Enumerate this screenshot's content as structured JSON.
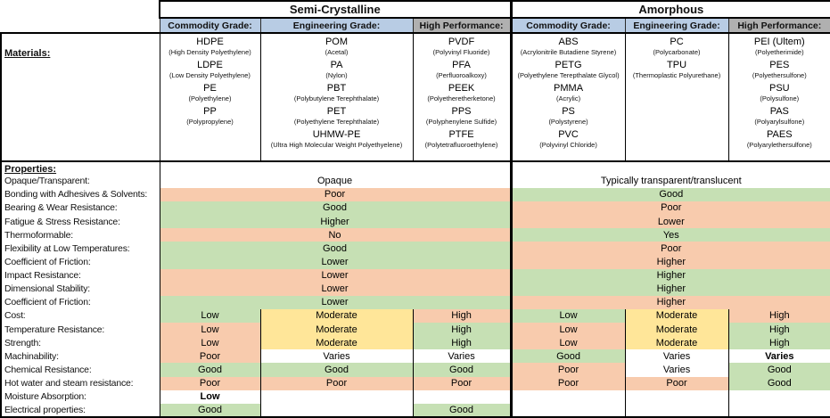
{
  "colors": {
    "green": "#c6e0b4",
    "orange": "#f8cbad",
    "yellow": "#ffe699",
    "blue": "#b8cce4",
    "gray": "#b0b0b0",
    "white": "#ffffff"
  },
  "header": {
    "groups": [
      {
        "label": "Semi-Crystalline",
        "columns": [
          {
            "label": "Commodity Grade:",
            "bg": "blue"
          },
          {
            "label": "Engineering Grade:",
            "bg": "blue"
          },
          {
            "label": "High Performance:",
            "bg": "gray"
          }
        ]
      },
      {
        "label": "Amorphous",
        "columns": [
          {
            "label": "Commodity Grade:",
            "bg": "blue"
          },
          {
            "label": "Engineering Grade:",
            "bg": "blue"
          },
          {
            "label": "High Performance:",
            "bg": "gray"
          }
        ]
      }
    ]
  },
  "materials": {
    "row_label": "Materials:",
    "columns": [
      {
        "key": "semi-commodity",
        "items": [
          {
            "name": "HDPE",
            "full": "(High Density Polyethylene)"
          },
          {
            "name": "LDPE",
            "full": "(Low Density Polyethylene)"
          },
          {
            "name": "PE",
            "full": "(Polyethylene)"
          },
          {
            "name": "PP",
            "full": "(Polypropylene)"
          }
        ]
      },
      {
        "key": "semi-engineering",
        "items": [
          {
            "name": "POM",
            "full": "(Acetal)"
          },
          {
            "name": "PA",
            "full": "(Nylon)"
          },
          {
            "name": "PBT",
            "full": "(Polybutylene Terephthalate)"
          },
          {
            "name": "PET",
            "full": "(Polyethylene Terephthalate)"
          },
          {
            "name": "UHMW-PE",
            "full": "(Ultra High Molecular Weight Polyethyelene)"
          }
        ]
      },
      {
        "key": "semi-high-performance",
        "items": [
          {
            "name": "PVDF",
            "full": "(Polyvinyl Fluoride)"
          },
          {
            "name": "PFA",
            "full": "(Perfluoroalkoxy)"
          },
          {
            "name": "PEEK",
            "full": "(Polyetheretherketone)"
          },
          {
            "name": "PPS",
            "full": "(Polyphenylene Sulfide)"
          },
          {
            "name": "PTFE",
            "full": "(Polytetrafluoroethylene)"
          }
        ]
      },
      {
        "key": "amorphous-commodity",
        "items": [
          {
            "name": "ABS",
            "full": "(Acrylonitrile Butadiene Styrene)"
          },
          {
            "name": "PETG",
            "full": "(Polyethylene Terepthalate Glycol)"
          },
          {
            "name": "PMMA",
            "full": "(Acrylic)"
          },
          {
            "name": "PS",
            "full": "(Polystyrene)"
          },
          {
            "name": "PVC",
            "full": "(Polyvinyl Chloride)"
          }
        ]
      },
      {
        "key": "amorphous-engineering",
        "items": [
          {
            "name": "PC",
            "full": "(Polycarbonate)"
          },
          {
            "name": "TPU",
            "full": "(Thermoplastic Polyurethane)"
          }
        ]
      },
      {
        "key": "amorphous-high-performance",
        "items": [
          {
            "name": "PEI (Ultem)",
            "full": "(Polyetherimide)"
          },
          {
            "name": "PES",
            "full": "(Polyethersulfone)"
          },
          {
            "name": "PSU",
            "full": "(Polysulfone)"
          },
          {
            "name": "PAS",
            "full": "(Polyarylsulfone)"
          },
          {
            "name": "PAES",
            "full": "(Polyarylethersulfone)"
          }
        ]
      }
    ]
  },
  "properties": {
    "row_label": "Properties:",
    "rows": [
      {
        "label": "Opaque/Transparent:",
        "type": "merged",
        "semi": {
          "text": "Opaque",
          "bg": "white"
        },
        "amorphous": {
          "text": "Typically transparent/translucent",
          "bg": "white"
        }
      },
      {
        "label": "Bonding with Adhesives & Solvents:",
        "type": "merged",
        "semi": {
          "text": "Poor",
          "bg": "orange"
        },
        "amorphous": {
          "text": "Good",
          "bg": "green"
        }
      },
      {
        "label": "Bearing & Wear Resistance:",
        "type": "merged",
        "semi": {
          "text": "Good",
          "bg": "green"
        },
        "amorphous": {
          "text": "Poor",
          "bg": "orange"
        }
      },
      {
        "label": "Fatigue & Stress Resistance:",
        "type": "merged",
        "semi": {
          "text": "Higher",
          "bg": "green"
        },
        "amorphous": {
          "text": "Lower",
          "bg": "orange"
        }
      },
      {
        "label": "Thermoformable:",
        "type": "merged",
        "semi": {
          "text": "No",
          "bg": "orange"
        },
        "amorphous": {
          "text": "Yes",
          "bg": "green"
        }
      },
      {
        "label": "Flexibility at Low Temperatures:",
        "type": "merged",
        "semi": {
          "text": "Good",
          "bg": "green"
        },
        "amorphous": {
          "text": "Poor",
          "bg": "orange"
        }
      },
      {
        "label": "Coefficient of Friction:",
        "type": "merged",
        "semi": {
          "text": "Lower",
          "bg": "green"
        },
        "amorphous": {
          "text": "Higher",
          "bg": "orange"
        }
      },
      {
        "label": "Impact Resistance:",
        "type": "merged",
        "semi": {
          "text": "Lower",
          "bg": "orange"
        },
        "amorphous": {
          "text": "Higher",
          "bg": "green"
        }
      },
      {
        "label": "Dimensional Stability:",
        "type": "merged",
        "semi": {
          "text": "Lower",
          "bg": "orange"
        },
        "amorphous": {
          "text": "Higher",
          "bg": "green"
        }
      },
      {
        "label": "Coefficient of Friction:",
        "type": "merged",
        "semi": {
          "text": "Lower",
          "bg": "green"
        },
        "amorphous": {
          "text": "Higher",
          "bg": "orange"
        }
      },
      {
        "label": "Cost:",
        "type": "split",
        "cells": [
          {
            "text": "Low",
            "bg": "green"
          },
          {
            "text": "Moderate",
            "bg": "yellow"
          },
          {
            "text": "High",
            "bg": "orange"
          },
          {
            "text": "Low",
            "bg": "green"
          },
          {
            "text": "Moderate",
            "bg": "yellow"
          },
          {
            "text": "High",
            "bg": "orange"
          }
        ]
      },
      {
        "label": "Temperature Resistance:",
        "type": "split",
        "cells": [
          {
            "text": "Low",
            "bg": "orange"
          },
          {
            "text": "Moderate",
            "bg": "yellow"
          },
          {
            "text": "High",
            "bg": "green"
          },
          {
            "text": "Low",
            "bg": "orange"
          },
          {
            "text": "Moderate",
            "bg": "yellow"
          },
          {
            "text": "High",
            "bg": "green"
          }
        ]
      },
      {
        "label": "Strength:",
        "type": "split",
        "cells": [
          {
            "text": "Low",
            "bg": "orange"
          },
          {
            "text": "Moderate",
            "bg": "yellow"
          },
          {
            "text": "High",
            "bg": "green"
          },
          {
            "text": "Low",
            "bg": "orange"
          },
          {
            "text": "Moderate",
            "bg": "yellow"
          },
          {
            "text": "High",
            "bg": "green"
          }
        ]
      },
      {
        "label": "Machinability:",
        "type": "split",
        "cells": [
          {
            "text": "Poor",
            "bg": "orange"
          },
          {
            "text": "Varies",
            "bg": "white"
          },
          {
            "text": "Varies",
            "bg": "white"
          },
          {
            "text": "Good",
            "bg": "green"
          },
          {
            "text": "Varies",
            "bg": "white"
          },
          {
            "text": "Varies",
            "bg": "white",
            "bold": true
          }
        ]
      },
      {
        "label": "Chemical Resistance:",
        "type": "split",
        "cells": [
          {
            "text": "Good",
            "bg": "green"
          },
          {
            "text": "Good",
            "bg": "green"
          },
          {
            "text": "Good",
            "bg": "green"
          },
          {
            "text": "Poor",
            "bg": "orange"
          },
          {
            "text": "Varies",
            "bg": "white"
          },
          {
            "text": "Good",
            "bg": "green"
          }
        ]
      },
      {
        "label": "Hot water and steam resistance:",
        "type": "split",
        "cells": [
          {
            "text": "Poor",
            "bg": "orange"
          },
          {
            "text": "Poor",
            "bg": "orange"
          },
          {
            "text": "Poor",
            "bg": "orange"
          },
          {
            "text": "Poor",
            "bg": "orange"
          },
          {
            "text": "Poor",
            "bg": "orange"
          },
          {
            "text": "Good",
            "bg": "green"
          }
        ]
      },
      {
        "label": "Moisture Absorption:",
        "type": "split",
        "cells": [
          {
            "text": "Low",
            "bg": "white",
            "bold": true
          },
          {
            "text": "",
            "bg": "white"
          },
          {
            "text": "",
            "bg": "white"
          },
          {
            "text": "",
            "bg": "white"
          },
          {
            "text": "",
            "bg": "white"
          },
          {
            "text": "",
            "bg": "white"
          }
        ]
      },
      {
        "label": "Electrical properties:",
        "type": "split",
        "cells": [
          {
            "text": "Good",
            "bg": "green"
          },
          {
            "text": "",
            "bg": "white"
          },
          {
            "text": "Good",
            "bg": "green"
          },
          {
            "text": "",
            "bg": "white"
          },
          {
            "text": "",
            "bg": "white"
          },
          {
            "text": "",
            "bg": "white"
          }
        ]
      }
    ]
  }
}
